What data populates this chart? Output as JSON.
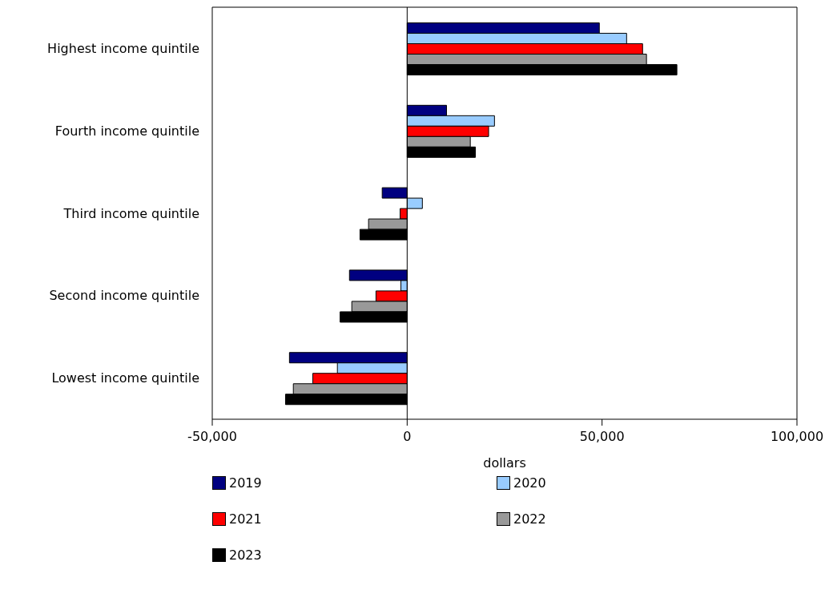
{
  "chart_data": {
    "type": "bar",
    "orientation": "horizontal",
    "xlabel": "dollars",
    "categories": [
      "Highest income quintile",
      "Fourth income quintile",
      "Third income quintile",
      "Second income quintile",
      "Lowest income quintile"
    ],
    "series": [
      {
        "name": "2019",
        "color": "#000080",
        "values": [
          49300,
          10100,
          -6400,
          -14800,
          -30200
        ]
      },
      {
        "name": "2020",
        "color": "#99ccff",
        "values": [
          56300,
          22400,
          3900,
          -1600,
          -17900
        ]
      },
      {
        "name": "2021",
        "color": "#ff0000",
        "values": [
          60400,
          20900,
          -1800,
          -8000,
          -24200
        ]
      },
      {
        "name": "2022",
        "color": "#999999",
        "values": [
          61400,
          16200,
          -9900,
          -14200,
          -29200
        ]
      },
      {
        "name": "2023",
        "color": "#000000",
        "values": [
          69200,
          17500,
          -12100,
          -17200,
          -31200
        ]
      }
    ],
    "xlim": [
      -50000,
      100000
    ],
    "xticks": [
      {
        "value": -50000,
        "label": "-50,000"
      },
      0,
      {
        "value": 50000,
        "label": "50,000"
      },
      {
        "value": 100000,
        "label": "100,000"
      }
    ],
    "ref_lines": [
      {
        "axis": "x",
        "value": 0,
        "color": "#000000"
      }
    ],
    "grid": false,
    "legend": "bottom"
  }
}
